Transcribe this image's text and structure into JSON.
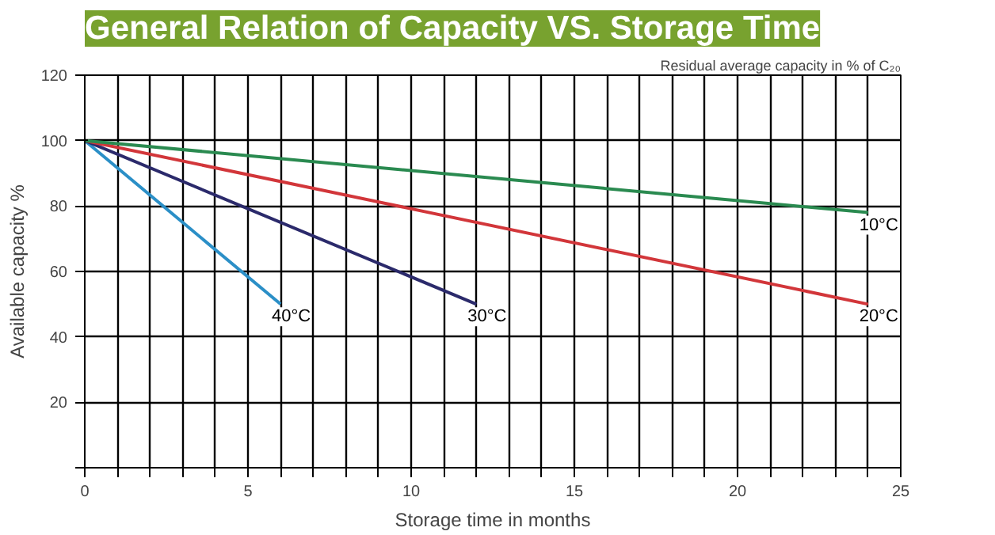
{
  "chart_data": {
    "type": "line",
    "title": "General Relation of Capacity VS. Storage Time",
    "xlabel": "Storage time in months",
    "ylabel": "Available capacity %",
    "annotations": [
      "Residual average capacity in % of C₂₀"
    ],
    "series": [
      {
        "name": "40°C",
        "color": "#2b8fc7",
        "x": [
          0,
          6
        ],
        "values": [
          100,
          50
        ]
      },
      {
        "name": "30°C",
        "color": "#2b2a6b",
        "x": [
          0,
          12
        ],
        "values": [
          100,
          50
        ]
      },
      {
        "name": "20°C",
        "color": "#d2363a",
        "x": [
          0,
          24
        ],
        "values": [
          100,
          50
        ]
      },
      {
        "name": "10°C",
        "color": "#2a8a50",
        "x": [
          0,
          24
        ],
        "values": [
          100,
          78
        ]
      }
    ],
    "xlim": [
      0,
      25
    ],
    "ylim": [
      0,
      120
    ],
    "xticks": [
      0,
      {
        "value": 1,
        "label": null
      },
      {
        "value": 2,
        "label": null
      },
      {
        "value": 3,
        "label": null
      },
      {
        "value": 4,
        "label": null
      },
      5,
      {
        "value": 6,
        "label": null
      },
      {
        "value": 7,
        "label": null
      },
      {
        "value": 8,
        "label": null
      },
      {
        "value": 9,
        "label": null
      },
      10,
      {
        "value": 11,
        "label": null
      },
      {
        "value": 12,
        "label": null
      },
      {
        "value": 13,
        "label": null
      },
      {
        "value": 14,
        "label": null
      },
      15,
      {
        "value": 16,
        "label": null
      },
      {
        "value": 17,
        "label": null
      },
      {
        "value": 18,
        "label": null
      },
      {
        "value": 19,
        "label": null
      },
      20,
      {
        "value": 21,
        "label": null
      },
      {
        "value": 22,
        "label": null
      },
      {
        "value": 23,
        "label": null
      },
      {
        "value": 24,
        "label": null
      },
      25
    ],
    "yticks": [
      {
        "value": 0,
        "label": null
      },
      20,
      40,
      60,
      80,
      100,
      120
    ],
    "grid": true,
    "line_style": "solid",
    "marker": "none"
  }
}
